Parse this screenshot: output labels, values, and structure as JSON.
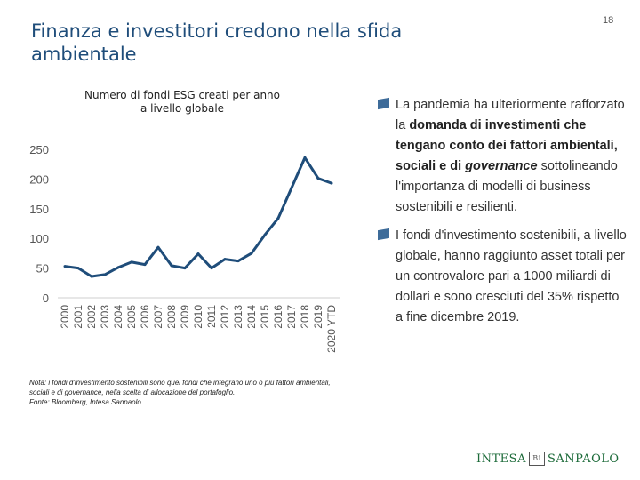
{
  "header": {
    "title": "Finanza e investitori credono nella sfida ambientale",
    "page_number": "18"
  },
  "chart_data": {
    "type": "line",
    "title": "Numero di fondi ESG creati per anno a livello globale",
    "categories": [
      "2000",
      "2001",
      "2002",
      "2003",
      "2004",
      "2005",
      "2006",
      "2007",
      "2008",
      "2009",
      "2010",
      "2011",
      "2012",
      "2013",
      "2014",
      "2015",
      "2016",
      "2017",
      "2018",
      "2019",
      "2020 YTD"
    ],
    "values": [
      53,
      50,
      36,
      39,
      51,
      60,
      56,
      85,
      54,
      50,
      74,
      50,
      65,
      62,
      75,
      106,
      134,
      185,
      236,
      201,
      193
    ],
    "yticks": [
      0,
      50,
      100,
      150,
      200,
      250
    ],
    "ylim": [
      0,
      250
    ],
    "color": "#1f4d7a",
    "xlabel": "",
    "ylabel": ""
  },
  "footnote": {
    "line1": "Nota: i fondi d'investimento sostenibili sono quei fondi che integrano uno o più fattori ambientali, sociali e di governance, nella scelta di allocazione del portafoglio.",
    "line2": "Fonte: Bloomberg, Intesa Sanpaolo"
  },
  "bullets": [
    {
      "pre": "La pandemia ha ulteriormente rafforzato la ",
      "bold": "domanda di investimenti che tengano conto dei fattori ambientali, sociali e di ",
      "italic": "governance",
      "post": " sottolineando l'importanza di modelli di business sostenibili e resilienti."
    },
    {
      "text": "I fondi d'investimento sostenibili, a livello globale, hanno raggiunto asset totali per un controvalore pari a 1000 miliardi di dollari e sono cresciuti del 35% rispetto a fine dicembre 2019."
    }
  ],
  "logo": {
    "left": "INTESA",
    "mark": "Bi",
    "right": "SANPAOLO"
  }
}
